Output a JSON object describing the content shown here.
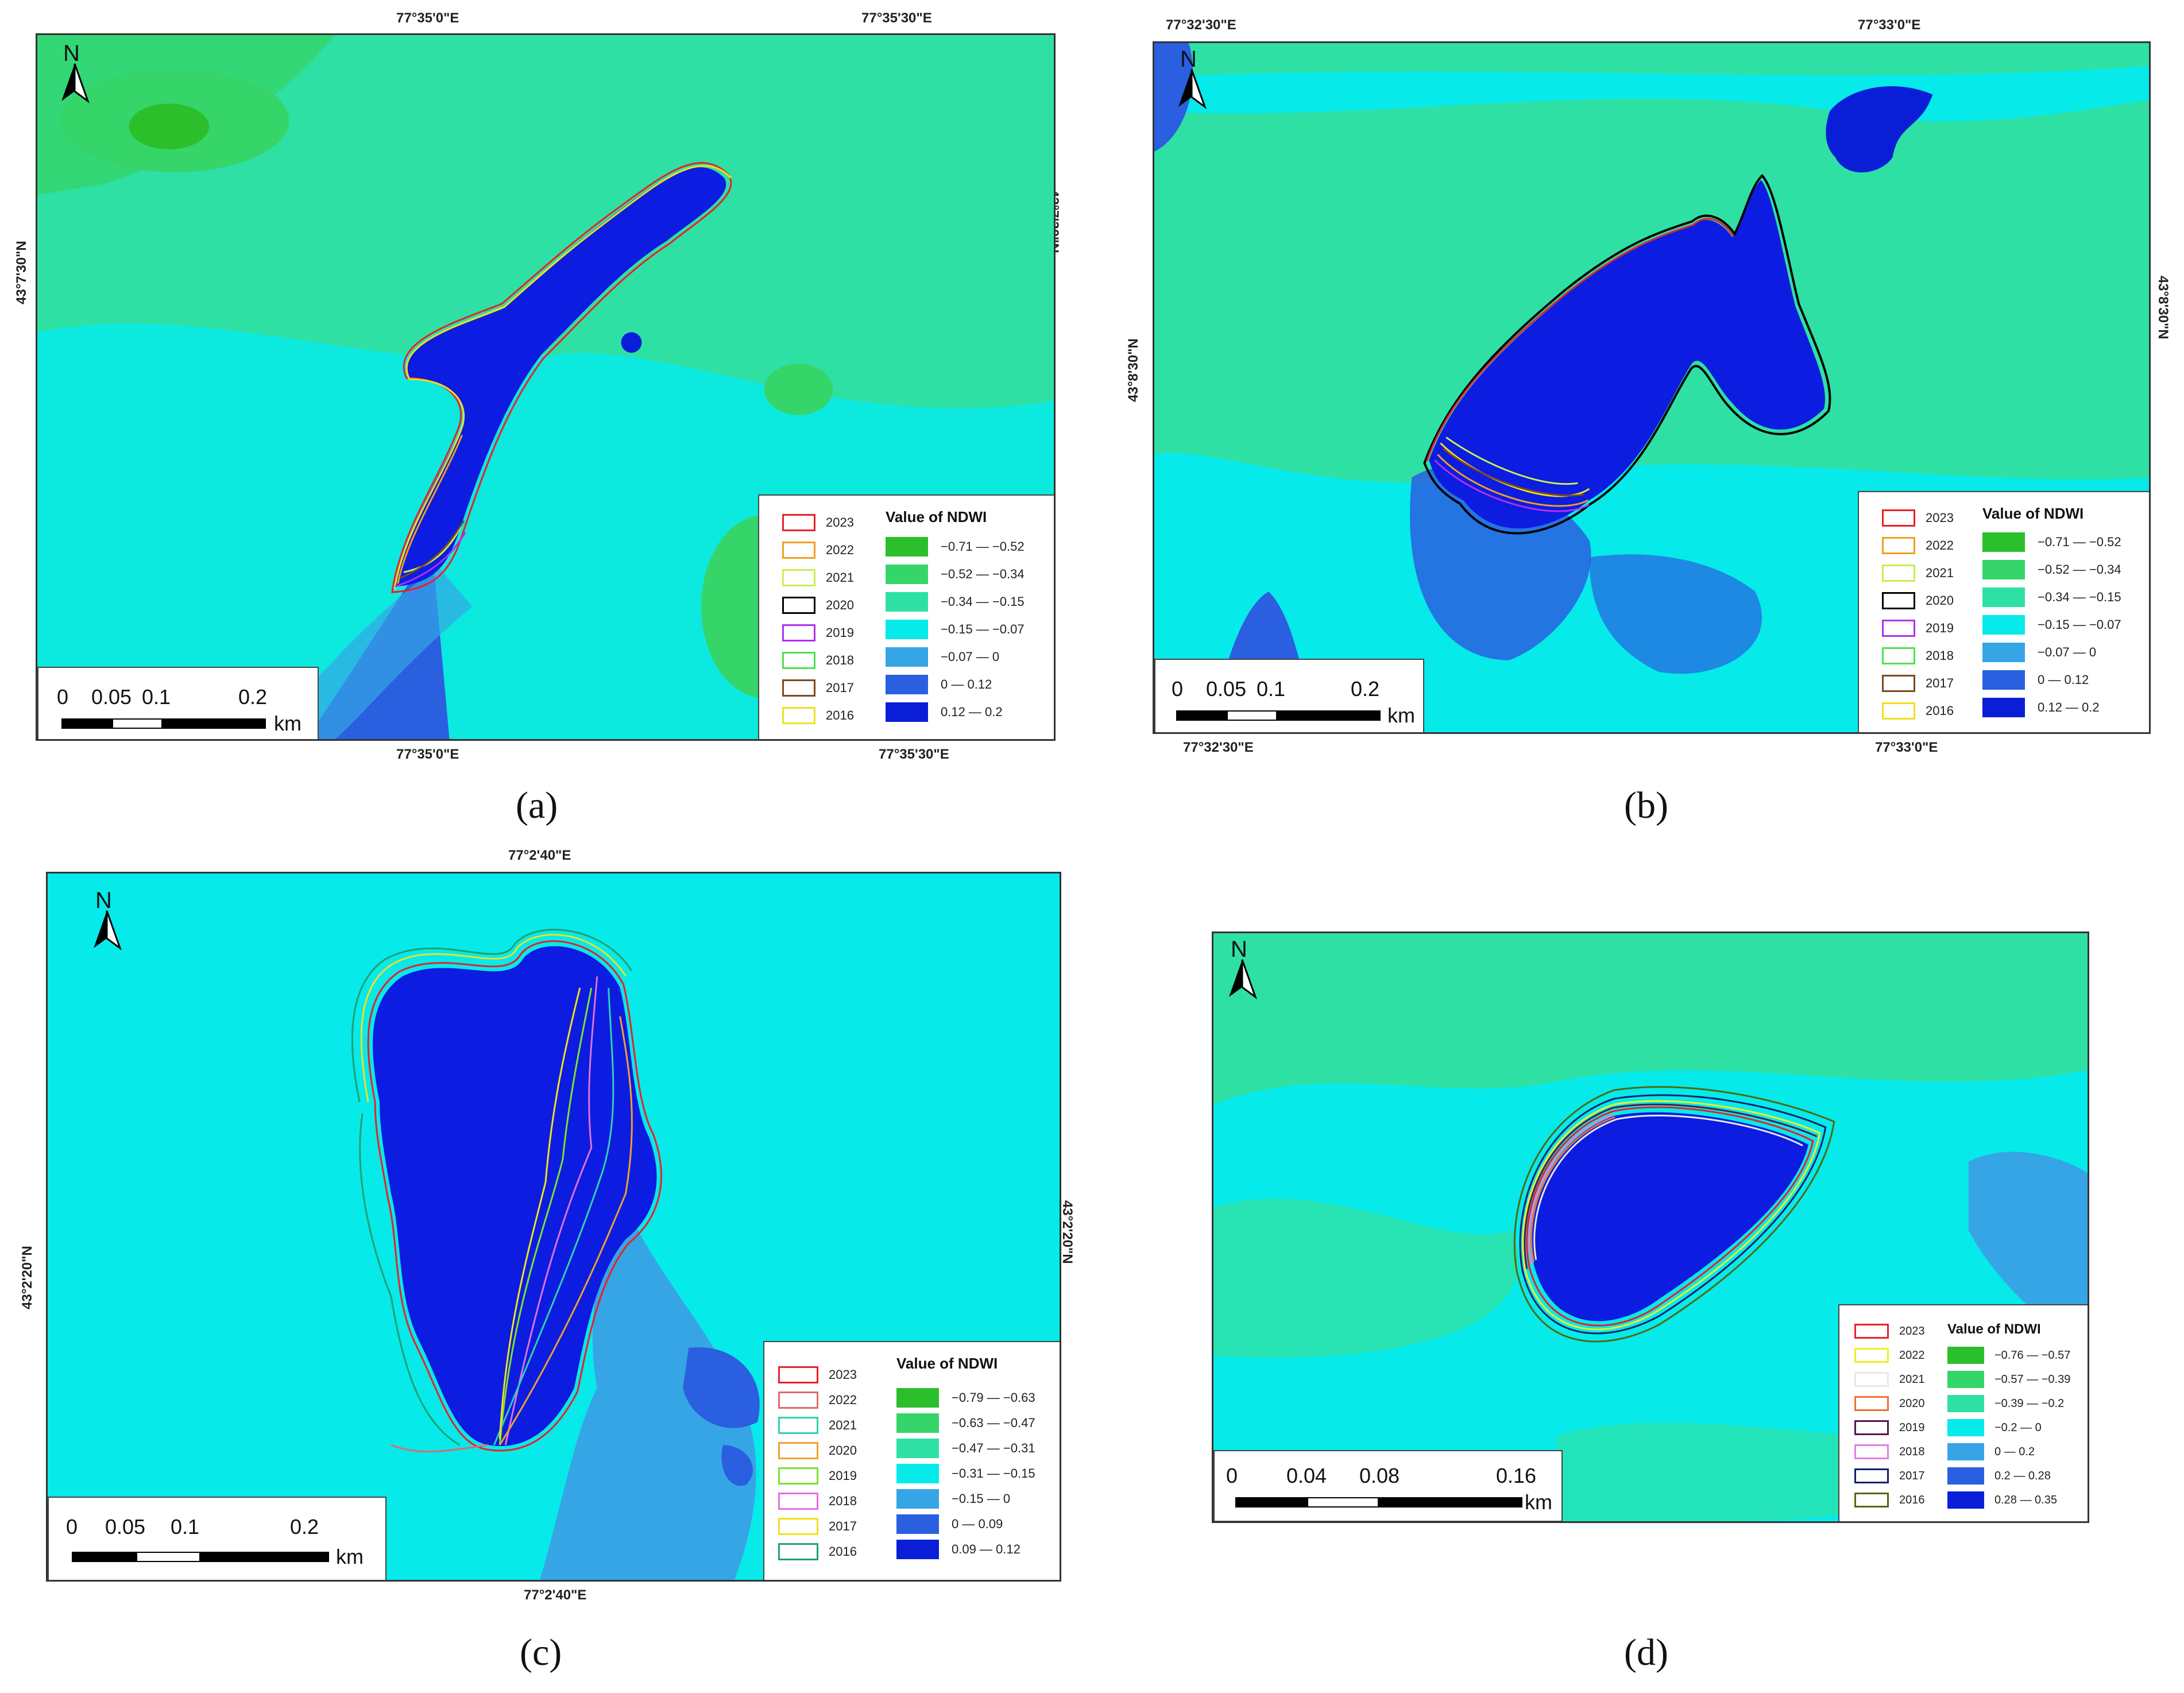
{
  "colors": {
    "class1": "#2cbf2c",
    "class2": "#36d56a",
    "class3": "#2fe0a4",
    "class4": "#06eaea",
    "class5": "#36a5e6",
    "class6": "#2a5fe0",
    "class7": "#0a1ed8",
    "water": "#0c1ce0",
    "lake_outline_2023": "#e8202a"
  },
  "icons": {
    "north_arrow": "north-arrow-icon"
  },
  "panels": {
    "a": {
      "caption": "(a)",
      "north": "N",
      "top_lon": [
        "77°35'0\"E",
        "77°35'30\"E"
      ],
      "bottom_lon": [
        "77°35'0\"E",
        "77°35'30\"E"
      ],
      "left_lat": "43°7'30\"N",
      "right_lat": "43°7'30\"N",
      "legend_title": "Value of NDWI",
      "years": [
        "2023",
        "2022",
        "2021",
        "2020",
        "2019",
        "2018",
        "2017",
        "2016"
      ],
      "year_colors": [
        "#e8202a",
        "#f0a020",
        "#c8f050",
        "#000000",
        "#b030f0",
        "#50e050",
        "#7a4a20",
        "#f0e020"
      ],
      "classes": [
        "−0.71 — −0.52",
        "−0.52 — −0.34",
        "−0.34 — −0.15",
        "−0.15 — −0.07",
        "−0.07 — 0",
        "0 — 0.12",
        "0.12 — 0.2"
      ],
      "scale_ticks": [
        "0",
        "0.05",
        "0.1",
        "0.2"
      ],
      "scale_unit": "km"
    },
    "b": {
      "caption": "(b)",
      "north": "N",
      "top_lon": [
        "77°32'30\"E",
        "77°33'0\"E"
      ],
      "bottom_lon": [
        "77°32'30\"E",
        "77°33'0\"E"
      ],
      "left_lat": "43°8'30\"N",
      "right_lat": "43°8'30\"N",
      "legend_title": "Value of NDWI",
      "years": [
        "2023",
        "2022",
        "2021",
        "2020",
        "2019",
        "2018",
        "2017",
        "2016"
      ],
      "year_colors": [
        "#e8202a",
        "#f0a020",
        "#c8f050",
        "#000000",
        "#b030f0",
        "#50e050",
        "#7a4a20",
        "#f0e020"
      ],
      "classes": [
        "−0.71 — −0.52",
        "−0.52 — −0.34",
        "−0.34 — −0.15",
        "−0.15 — −0.07",
        "−0.07 — 0",
        "0 — 0.12",
        "0.12 — 0.2"
      ],
      "scale_ticks": [
        "0",
        "0.05",
        "0.1",
        "0.2"
      ],
      "scale_unit": "km"
    },
    "c": {
      "caption": "(c)",
      "north": "N",
      "top_lon": [
        "77°2'40\"E"
      ],
      "bottom_lon": [
        "77°2'40\"E"
      ],
      "left_lat": "43°2'20\"N",
      "right_lat": "43°2'20\"N",
      "legend_title": "Value of NDWI",
      "years": [
        "2023",
        "2022",
        "2021",
        "2020",
        "2019",
        "2018",
        "2017",
        "2016"
      ],
      "year_colors": [
        "#e8202a",
        "#e06a6a",
        "#30d0b0",
        "#f0a030",
        "#80e030",
        "#e070e0",
        "#f0e020",
        "#20a070"
      ],
      "classes": [
        "−0.79 — −0.63",
        "−0.63 — −0.47",
        "−0.47 — −0.31",
        "−0.31 — −0.15",
        "−0.15 — 0",
        "0 — 0.09",
        "0.09 — 0.12"
      ],
      "scale_ticks": [
        "0",
        "0.05",
        "0.1",
        "0.2"
      ],
      "scale_unit": "km"
    },
    "d": {
      "caption": "(d)",
      "north": "N",
      "legend_title": "Value of NDWI",
      "years": [
        "2023",
        "2022",
        "2021",
        "2020",
        "2019",
        "2018",
        "2017",
        "2016"
      ],
      "year_colors": [
        "#e8202a",
        "#f0f020",
        "#e8e8e8",
        "#f07030",
        "#501850",
        "#e080e0",
        "#102070",
        "#506a10"
      ],
      "classes": [
        "−0.76 — −0.57",
        "−0.57 — −0.39",
        "−0.39 — −0.2",
        "−0.2 — 0",
        "0 — 0.2",
        "0.2 — 0.28",
        "0.28 — 0.35"
      ],
      "scale_ticks": [
        "0",
        "0.04",
        "0.08",
        "0.16"
      ],
      "scale_unit": "km"
    }
  }
}
